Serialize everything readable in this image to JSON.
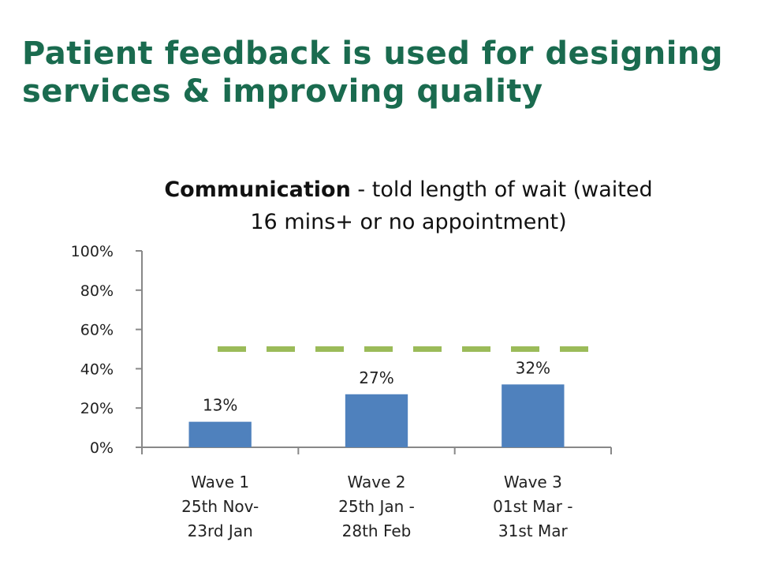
{
  "slide": {
    "title_line1": "Patient feedback is used for designing",
    "title_line2": "services & improving quality"
  },
  "chart_data": {
    "type": "bar",
    "title_bold": "Communication",
    "title_rest": " - told length of wait (waited",
    "title_line2": "16 mins+ or no appointment)",
    "categories": [
      [
        "Wave 1",
        "25th Nov-",
        "23rd Jan"
      ],
      [
        "Wave 2",
        "25th Jan -",
        "28th Feb"
      ],
      [
        "Wave 3",
        "01st Mar -",
        "31st Mar"
      ]
    ],
    "values": [
      13,
      27,
      32
    ],
    "data_labels": [
      "13%",
      "27%",
      "32%"
    ],
    "target_value": 50,
    "ylim": [
      0,
      100
    ],
    "yticks": [
      0,
      20,
      40,
      60,
      80,
      100
    ],
    "ytick_labels": [
      "0%",
      "20%",
      "40%",
      "60%",
      "80%",
      "100%"
    ],
    "grid": false,
    "bar_color": "#4f81bd",
    "target_color": "#9bbb59",
    "axis_color": "#888888"
  }
}
